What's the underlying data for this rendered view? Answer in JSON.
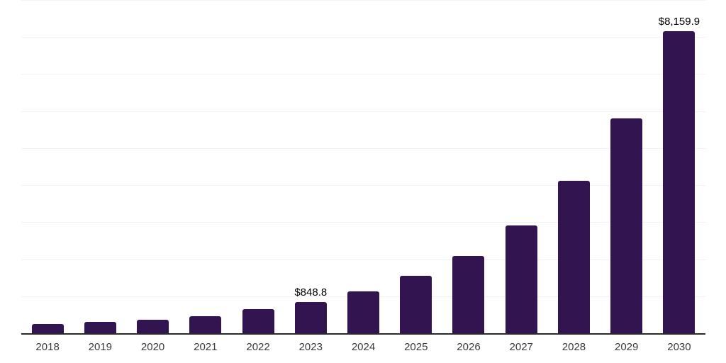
{
  "chart_data": {
    "type": "bar",
    "title": "",
    "xlabel": "",
    "ylabel": "",
    "categories": [
      "2018",
      "2019",
      "2020",
      "2021",
      "2022",
      "2023",
      "2024",
      "2025",
      "2026",
      "2027",
      "2028",
      "2029",
      "2030"
    ],
    "values": [
      250,
      313,
      365,
      455,
      650,
      848.8,
      1130,
      1545,
      2090,
      2905,
      4120,
      5805,
      8159.9
    ],
    "value_labels": [
      "",
      "",
      "",
      "",
      "",
      "$848.8",
      "",
      "",
      "",
      "",
      "",
      "",
      "$8,159.9"
    ],
    "ylim": [
      0,
      9000
    ],
    "gridline_step": 1000,
    "grid": "horizontal-only",
    "legend": "none",
    "bar_color": "#321550",
    "axis_line_color": "#2b2b2b",
    "gridline_color": "#f2f2f2",
    "tick_label_color": "#3a3a3a",
    "value_label_color": "#000000",
    "background_color": "#ffffff"
  }
}
